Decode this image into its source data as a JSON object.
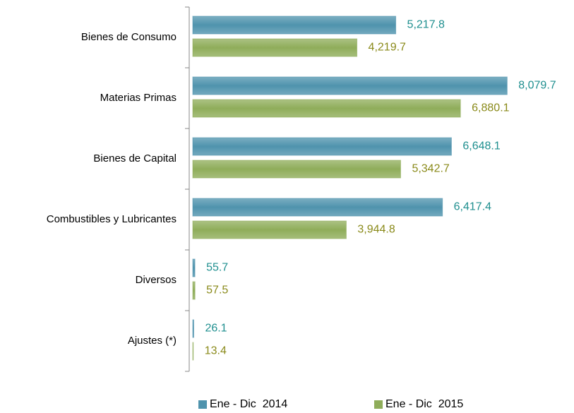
{
  "chart_data": {
    "type": "bar",
    "orientation": "horizontal",
    "categories": [
      "Bienes de Consumo",
      "Materias Primas",
      "Bienes de Capital",
      "Combustibles y Lubricantes",
      "Diversos",
      "Ajustes (*)"
    ],
    "series": [
      {
        "name": "Ene - Dic  2014",
        "color": "#4f93ad",
        "label_color": "#1f8f8f",
        "values": [
          5217.8,
          8079.7,
          6648.1,
          6417.4,
          55.7,
          26.1
        ],
        "value_labels": [
          "5,217.8",
          "8,079.7",
          "6,648.1",
          "6,417.4",
          "55.7",
          "26.1"
        ]
      },
      {
        "name": "Ene - Dic  2015",
        "color": "#8fad5a",
        "label_color": "#8a8a1a",
        "values": [
          4219.7,
          6880.1,
          5342.7,
          3944.8,
          57.5,
          13.4
        ],
        "value_labels": [
          "4,219.7",
          "6,880.1",
          "5,342.7",
          "3,944.8",
          "57.5",
          "13.4"
        ]
      }
    ],
    "xlim": [
      0,
      9000
    ],
    "legend": "bottom"
  }
}
